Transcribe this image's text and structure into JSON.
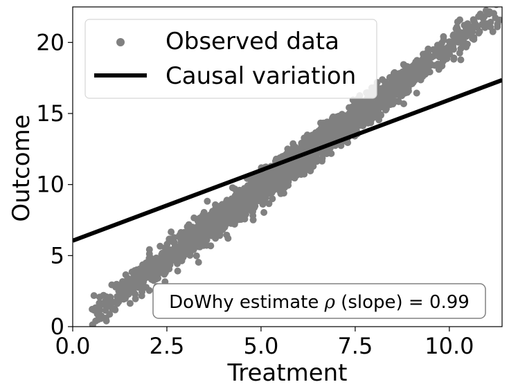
{
  "chart_data": {
    "type": "scatter",
    "title": "",
    "xlabel": "Treatment",
    "ylabel": "Outcome",
    "xlim": [
      0.0,
      11.4
    ],
    "ylim": [
      0,
      22.5
    ],
    "xticks": [
      0.0,
      2.5,
      5.0,
      7.5,
      10.0
    ],
    "xtick_labels": [
      "0.0",
      "2.5",
      "5.0",
      "7.5",
      "10.0"
    ],
    "yticks": [
      0,
      5,
      10,
      15,
      20
    ],
    "ytick_labels": [
      "0",
      "5",
      "10",
      "15",
      "20"
    ],
    "grid": false,
    "legend_position": "top-left",
    "series": [
      {
        "name": "Observed data",
        "kind": "scatter",
        "color": "#808080",
        "trend": {
          "slope": 1.99,
          "intercept": -0.2
        },
        "x_range": [
          0.5,
          11.4
        ],
        "band": 0.55,
        "count": 2600
      },
      {
        "name": "Causal variation",
        "kind": "line",
        "color": "#000000",
        "x": [
          0.0,
          11.4
        ],
        "y": [
          6.05,
          17.35
        ]
      }
    ],
    "annotation": {
      "prefix": "DoWhy estimate ",
      "symbol": "ρ",
      "suffix": " (slope) = 0.99",
      "position": "bottom-right"
    }
  }
}
